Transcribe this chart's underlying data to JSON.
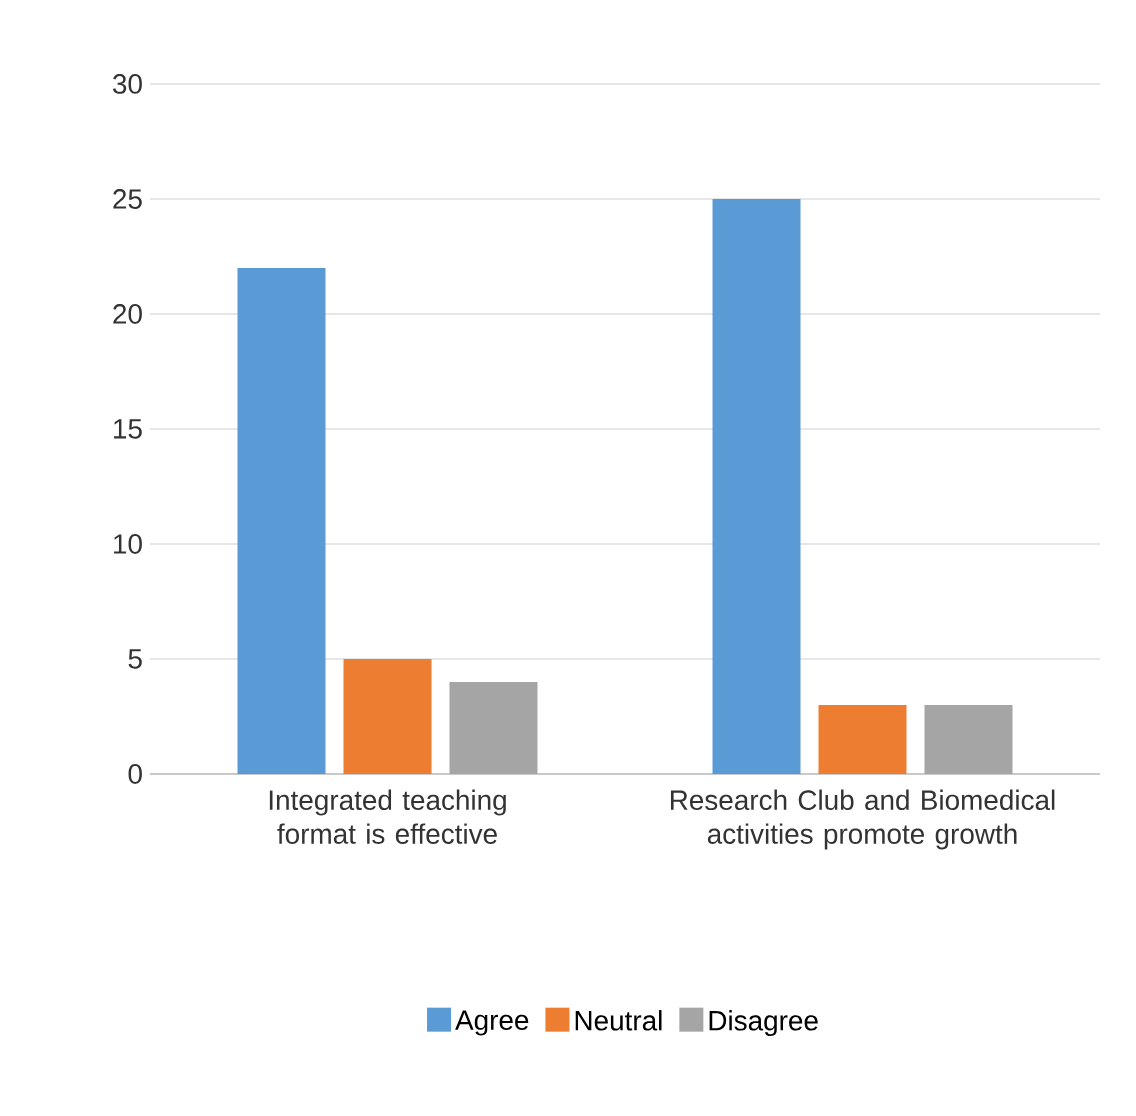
{
  "chart_data": {
    "type": "bar",
    "categories": [
      "Integrated teaching format is effective",
      "Research Club and Biomedical activities promote growth"
    ],
    "series": [
      {
        "name": "Agree",
        "color": "#5b9bd5",
        "values": [
          22,
          25
        ]
      },
      {
        "name": "Neutral",
        "color": "#ed7d31",
        "values": [
          5,
          3
        ]
      },
      {
        "name": "Disagree",
        "color": "#a5a5a5",
        "values": [
          4,
          3
        ]
      }
    ],
    "ylim": [
      0,
      30
    ],
    "yticks": [
      0,
      5,
      10,
      15,
      20,
      25,
      30
    ],
    "grid": "y",
    "legend": "bottom"
  }
}
